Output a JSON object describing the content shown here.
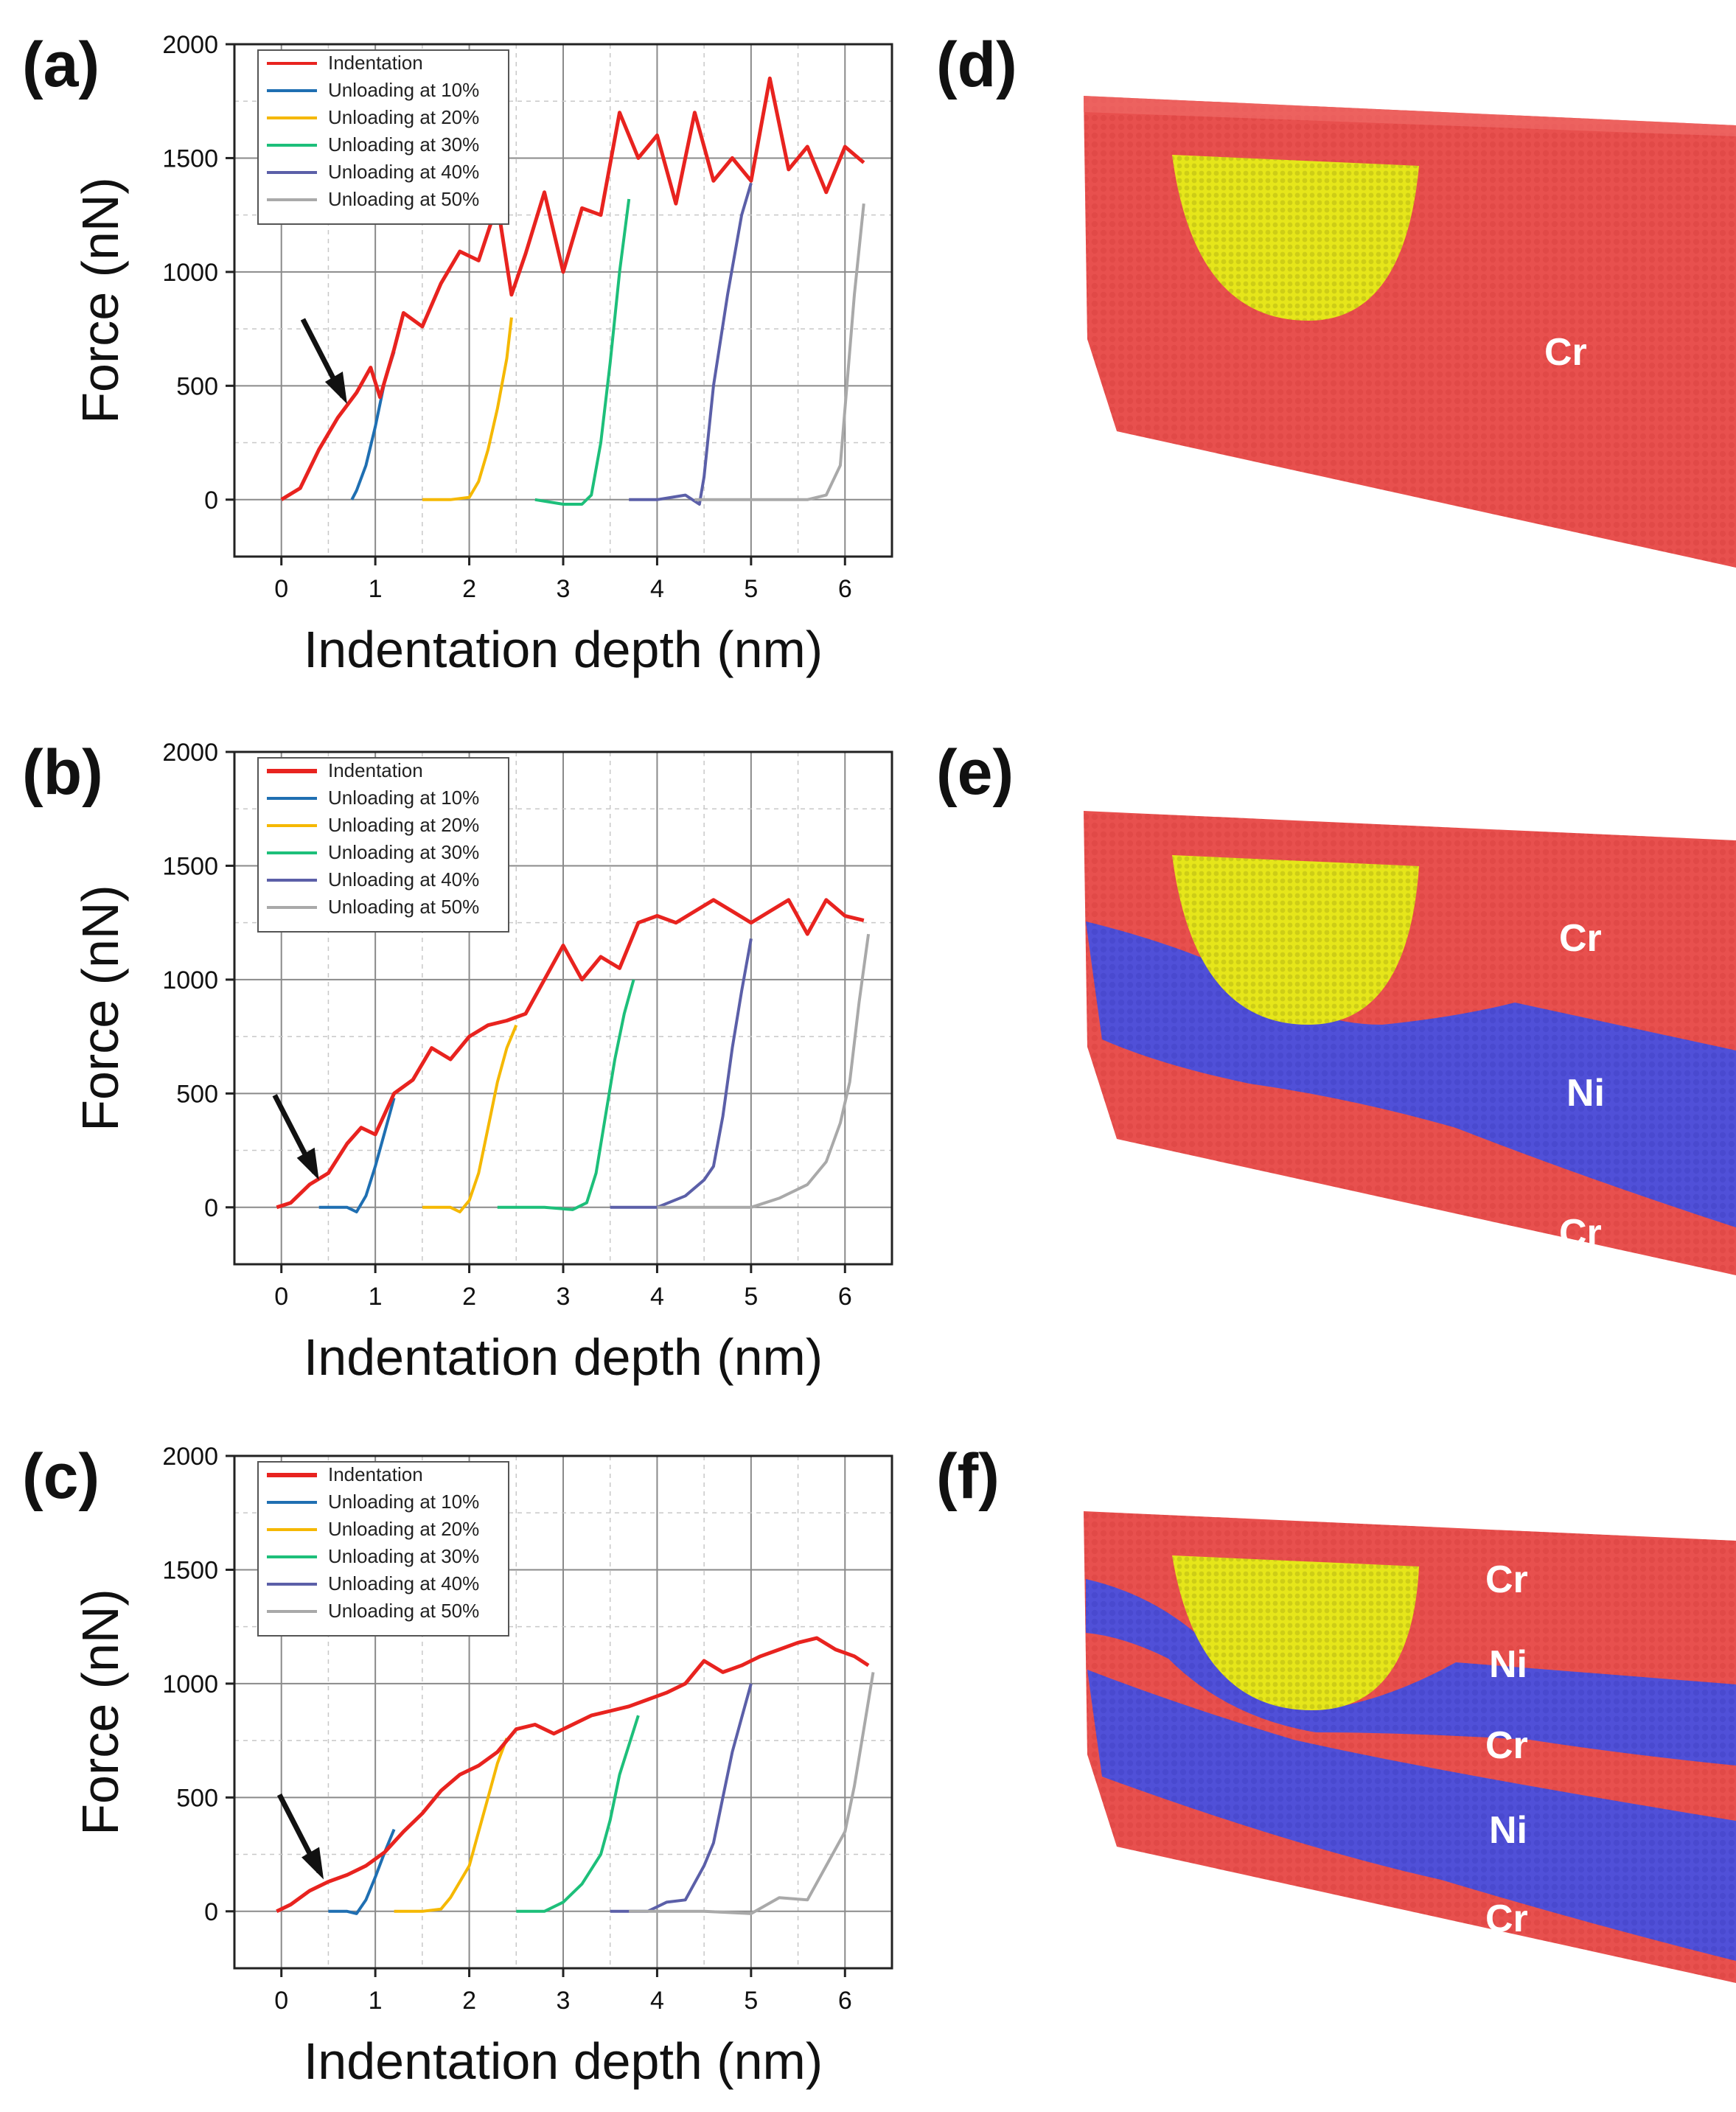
{
  "chart_data": [
    {
      "type": "line",
      "panel": "(a)",
      "xlabel": "Indentation depth (nm)",
      "ylabel": "Force (nN)",
      "xlim": [
        -0.5,
        6.5
      ],
      "ylim": [
        -250,
        2000
      ],
      "xticks": [
        "0",
        "1",
        "2",
        "3",
        "4",
        "5",
        "6"
      ],
      "yticks": [
        "0",
        "500",
        "1000",
        "1500",
        "2000"
      ],
      "legend": [
        "Indentation",
        "Unloading at 10%",
        "Unloading at 20%",
        "Unloading at 30%",
        "Unloading at 40%",
        "Unloading at 50%"
      ],
      "legend_position": "top-left",
      "arrow_at": [
        0.7,
        420
      ],
      "series": [
        {
          "name": "Indentation",
          "color": "#e8231f",
          "x": [
            0,
            0.2,
            0.4,
            0.6,
            0.8,
            0.95,
            1.05,
            1.2,
            1.3,
            1.5,
            1.7,
            1.9,
            2.1,
            2.3,
            2.45,
            2.6,
            2.8,
            3.0,
            3.2,
            3.4,
            3.6,
            3.8,
            4.0,
            4.2,
            4.4,
            4.6,
            4.8,
            5.0,
            5.2,
            5.4,
            5.6,
            5.8,
            6.0,
            6.2
          ],
          "y": [
            0,
            50,
            220,
            360,
            470,
            580,
            450,
            660,
            820,
            760,
            950,
            1090,
            1050,
            1300,
            900,
            1080,
            1350,
            1000,
            1280,
            1250,
            1700,
            1500,
            1600,
            1300,
            1700,
            1400,
            1500,
            1400,
            1850,
            1450,
            1550,
            1350,
            1550,
            1480
          ]
        },
        {
          "name": "Unloading at 10%",
          "color": "#1f6fb2",
          "x": [
            0.75,
            0.8,
            0.9,
            1.0,
            1.1,
            1.2
          ],
          "y": [
            0,
            40,
            150,
            320,
            520,
            650
          ]
        },
        {
          "name": "Unloading at 20%",
          "color": "#f5b800",
          "x": [
            1.5,
            1.8,
            2.0,
            2.1,
            2.2,
            2.3,
            2.4,
            2.45
          ],
          "y": [
            0,
            0,
            10,
            80,
            220,
            400,
            620,
            800
          ]
        },
        {
          "name": "Unloading at 30%",
          "color": "#1dbf7a",
          "x": [
            2.7,
            3.0,
            3.2,
            3.3,
            3.4,
            3.5,
            3.6,
            3.7
          ],
          "y": [
            0,
            -20,
            -20,
            20,
            250,
            600,
            1000,
            1320
          ]
        },
        {
          "name": "Unloading at 40%",
          "color": "#5b5fa8",
          "x": [
            3.7,
            4.0,
            4.3,
            4.45,
            4.5,
            4.6,
            4.75,
            4.9,
            5.0
          ],
          "y": [
            0,
            0,
            20,
            -20,
            100,
            500,
            900,
            1250,
            1390
          ]
        },
        {
          "name": "Unloading at 50%",
          "color": "#a9a9a9",
          "x": [
            4.4,
            5.0,
            5.6,
            5.8,
            5.95,
            6.0,
            6.1,
            6.2
          ],
          "y": [
            0,
            0,
            0,
            20,
            150,
            400,
            900,
            1300
          ]
        }
      ]
    },
    {
      "type": "line",
      "panel": "(b)",
      "xlabel": "Indentation depth (nm)",
      "ylabel": "Force (nN)",
      "xlim": [
        -0.5,
        6.5
      ],
      "ylim": [
        -250,
        2000
      ],
      "xticks": [
        "0",
        "1",
        "2",
        "3",
        "4",
        "5",
        "6"
      ],
      "yticks": [
        "0",
        "500",
        "1000",
        "1500",
        "2000"
      ],
      "legend": [
        "Indentation",
        "Unloading at 10%",
        "Unloading at 20%",
        "Unloading at 30%",
        "Unloading at 40%",
        "Unloading at 50%"
      ],
      "legend_position": "top-left",
      "arrow_at": [
        0.4,
        120
      ],
      "series": [
        {
          "name": "Indentation",
          "color": "#e8231f",
          "x": [
            -0.05,
            0.1,
            0.3,
            0.5,
            0.7,
            0.85,
            1.0,
            1.2,
            1.4,
            1.6,
            1.8,
            2.0,
            2.2,
            2.4,
            2.6,
            2.8,
            3.0,
            3.2,
            3.4,
            3.6,
            3.8,
            4.0,
            4.2,
            4.4,
            4.6,
            4.8,
            5.0,
            5.2,
            5.4,
            5.6,
            5.8,
            6.0,
            6.2
          ],
          "y": [
            0,
            20,
            100,
            150,
            280,
            350,
            320,
            500,
            560,
            700,
            650,
            750,
            800,
            820,
            850,
            1000,
            1150,
            1000,
            1100,
            1050,
            1250,
            1280,
            1250,
            1300,
            1350,
            1300,
            1250,
            1300,
            1350,
            1200,
            1350,
            1280,
            1260
          ]
        },
        {
          "name": "Unloading at 10%",
          "color": "#1f6fb2",
          "x": [
            0.4,
            0.7,
            0.8,
            0.9,
            1.0,
            1.1,
            1.2
          ],
          "y": [
            0,
            0,
            -20,
            50,
            180,
            330,
            480
          ]
        },
        {
          "name": "Unloading at 20%",
          "color": "#f5b800",
          "x": [
            1.5,
            1.8,
            1.9,
            2.0,
            2.1,
            2.2,
            2.3,
            2.4,
            2.5
          ],
          "y": [
            0,
            0,
            -20,
            30,
            150,
            350,
            550,
            700,
            800
          ]
        },
        {
          "name": "Unloading at 30%",
          "color": "#1dbf7a",
          "x": [
            2.3,
            2.8,
            3.1,
            3.25,
            3.35,
            3.45,
            3.55,
            3.65,
            3.75
          ],
          "y": [
            0,
            0,
            -10,
            20,
            150,
            400,
            650,
            850,
            1000
          ]
        },
        {
          "name": "Unloading at 40%",
          "color": "#5b5fa8",
          "x": [
            3.5,
            4.0,
            4.3,
            4.5,
            4.6,
            4.7,
            4.8,
            4.9,
            5.0
          ],
          "y": [
            0,
            0,
            50,
            120,
            180,
            400,
            700,
            950,
            1180
          ]
        },
        {
          "name": "Unloading at 50%",
          "color": "#a9a9a9",
          "x": [
            4.0,
            4.6,
            5.0,
            5.3,
            5.6,
            5.8,
            5.95,
            6.05,
            6.15,
            6.25
          ],
          "y": [
            0,
            0,
            0,
            40,
            100,
            200,
            370,
            550,
            900,
            1200
          ]
        }
      ]
    },
    {
      "type": "line",
      "panel": "(c)",
      "xlabel": "Indentation depth (nm)",
      "ylabel": "Force (nN)",
      "xlim": [
        -0.5,
        6.5
      ],
      "ylim": [
        -250,
        2000
      ],
      "xticks": [
        "0",
        "1",
        "2",
        "3",
        "4",
        "5",
        "6"
      ],
      "yticks": [
        "0",
        "500",
        "1000",
        "1500",
        "2000"
      ],
      "legend": [
        "Indentation",
        "Unloading at 10%",
        "Unloading at 20%",
        "Unloading at 30%",
        "Unloading at 40%",
        "Unloading at 50%"
      ],
      "legend_position": "top-left",
      "arrow_at": [
        0.45,
        140
      ],
      "series": [
        {
          "name": "Indentation",
          "color": "#e8231f",
          "x": [
            -0.05,
            0.1,
            0.3,
            0.5,
            0.7,
            0.9,
            1.1,
            1.3,
            1.5,
            1.7,
            1.9,
            2.1,
            2.3,
            2.5,
            2.7,
            2.9,
            3.1,
            3.3,
            3.5,
            3.7,
            3.9,
            4.1,
            4.3,
            4.5,
            4.7,
            4.9,
            5.1,
            5.3,
            5.5,
            5.7,
            5.9,
            6.1,
            6.25
          ],
          "y": [
            0,
            30,
            90,
            130,
            160,
            200,
            260,
            350,
            430,
            530,
            600,
            640,
            700,
            800,
            820,
            780,
            820,
            860,
            880,
            900,
            930,
            960,
            1000,
            1100,
            1050,
            1080,
            1120,
            1150,
            1180,
            1200,
            1150,
            1120,
            1080
          ]
        },
        {
          "name": "Unloading at 10%",
          "color": "#1f6fb2",
          "x": [
            0.5,
            0.7,
            0.8,
            0.9,
            1.0,
            1.1,
            1.2
          ],
          "y": [
            0,
            0,
            -10,
            50,
            150,
            260,
            360
          ]
        },
        {
          "name": "Unloading at 20%",
          "color": "#f5b800",
          "x": [
            1.2,
            1.5,
            1.7,
            1.8,
            2.0,
            2.1,
            2.2,
            2.3,
            2.4
          ],
          "y": [
            0,
            0,
            10,
            60,
            200,
            350,
            500,
            650,
            760
          ]
        },
        {
          "name": "Unloading at 30%",
          "color": "#1dbf7a",
          "x": [
            2.5,
            2.8,
            3.0,
            3.1,
            3.2,
            3.4,
            3.5,
            3.6,
            3.8
          ],
          "y": [
            0,
            0,
            40,
            80,
            120,
            250,
            400,
            600,
            860
          ]
        },
        {
          "name": "Unloading at 40%",
          "color": "#5b5fa8",
          "x": [
            3.5,
            3.9,
            4.1,
            4.3,
            4.5,
            4.6,
            4.7,
            4.8,
            4.9,
            5.0
          ],
          "y": [
            0,
            0,
            40,
            50,
            200,
            300,
            500,
            700,
            850,
            1000
          ]
        },
        {
          "name": "Unloading at 50%",
          "color": "#a9a9a9",
          "x": [
            3.7,
            4.5,
            5.0,
            5.3,
            5.6,
            5.8,
            6.0,
            6.1,
            6.2,
            6.3
          ],
          "y": [
            0,
            0,
            -10,
            60,
            50,
            200,
            350,
            550,
            800,
            1050
          ]
        }
      ]
    }
  ],
  "panels": {
    "a": {
      "label": "(a)"
    },
    "b": {
      "label": "(b)"
    },
    "c": {
      "label": "(c)"
    },
    "d": {
      "label": "(d)",
      "layers": [
        "Cr"
      ]
    },
    "e": {
      "label": "(e)",
      "layers": [
        "Cr",
        "Ni",
        "Cr"
      ]
    },
    "f": {
      "label": "(f)",
      "layers": [
        "Cr",
        "Ni",
        "Cr",
        "Ni",
        "Cr"
      ]
    }
  },
  "colors": {
    "cr": "#e8504e",
    "ni": "#5050d8",
    "indenter": "#e6e61a"
  }
}
